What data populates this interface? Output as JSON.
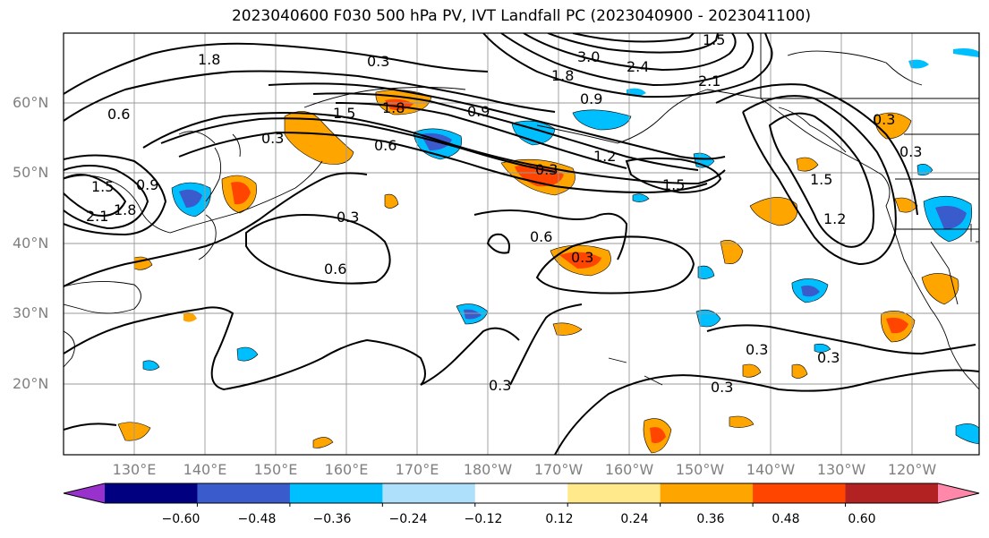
{
  "title": "2023040600 F030 500 hPa PV, IVT Landfall PC (2023040900 - 2023041100)",
  "lat_ticks": [
    "60°N",
    "50°N",
    "40°N",
    "30°N",
    "20°N"
  ],
  "lon_ticks": [
    "130°E",
    "140°E",
    "150°E",
    "160°E",
    "170°E",
    "180°W",
    "170°W",
    "160°W",
    "150°W",
    "140°W",
    "130°W",
    "120°W"
  ],
  "colorbar": {
    "tick_labels": [
      "−0.60",
      "−0.48",
      "−0.36",
      "−0.24",
      "−0.12",
      "0.12",
      "0.24",
      "0.36",
      "0.48",
      "0.60"
    ],
    "colors": [
      "#9932cc",
      "#000080",
      "#3a5bcb",
      "#00bfff",
      "#aee0fb",
      "#ffffff",
      "#ffe98a",
      "#ffa500",
      "#ff4500",
      "#b22222",
      "#ff88aa"
    ]
  },
  "contour_labels": [
    "1.8",
    "0.3",
    "3.0",
    "2.4",
    "1.5",
    "1.8",
    "0.9",
    "2.1",
    "0.6",
    "1.5",
    "0.9",
    "1.8",
    "0.3",
    "0.6",
    "1.2",
    "1.5",
    "0.9",
    "1.5",
    "2.1",
    "1.8",
    "0.3",
    "0.6",
    "0.6",
    "0.3",
    "0.3",
    "0.3",
    "0.3",
    "0.3",
    "1.5",
    "1.2",
    "0.3",
    "0.3",
    "0.3"
  ]
}
